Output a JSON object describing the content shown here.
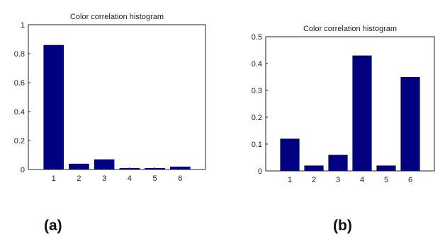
{
  "chart_data": [
    {
      "type": "bar",
      "title": "Color correlation histogram",
      "categories": [
        "1",
        "2",
        "3",
        "4",
        "5",
        "6"
      ],
      "values": [
        0.86,
        0.04,
        0.07,
        0.01,
        0.01,
        0.02
      ],
      "ylim": [
        0,
        1
      ],
      "yticks": [
        "0",
        "0.2",
        "0.4",
        "0.6",
        "0.8",
        "1"
      ],
      "xlabel": "",
      "ylabel": "",
      "bar_color": "#000080",
      "grid": false
    },
    {
      "type": "bar",
      "title": "Color correlation histogram",
      "categories": [
        "1",
        "2",
        "3",
        "4",
        "5",
        "6"
      ],
      "values": [
        0.12,
        0.02,
        0.06,
        0.43,
        0.02,
        0.35
      ],
      "ylim": [
        0,
        0.5
      ],
      "yticks": [
        "0",
        "0.1",
        "0.2",
        "0.3",
        "0.4",
        "0.5"
      ],
      "xlabel": "",
      "ylabel": "",
      "bar_color": "#000080",
      "grid": false
    }
  ],
  "panels": [
    {
      "label": "(a)"
    },
    {
      "label": "(b)"
    }
  ]
}
